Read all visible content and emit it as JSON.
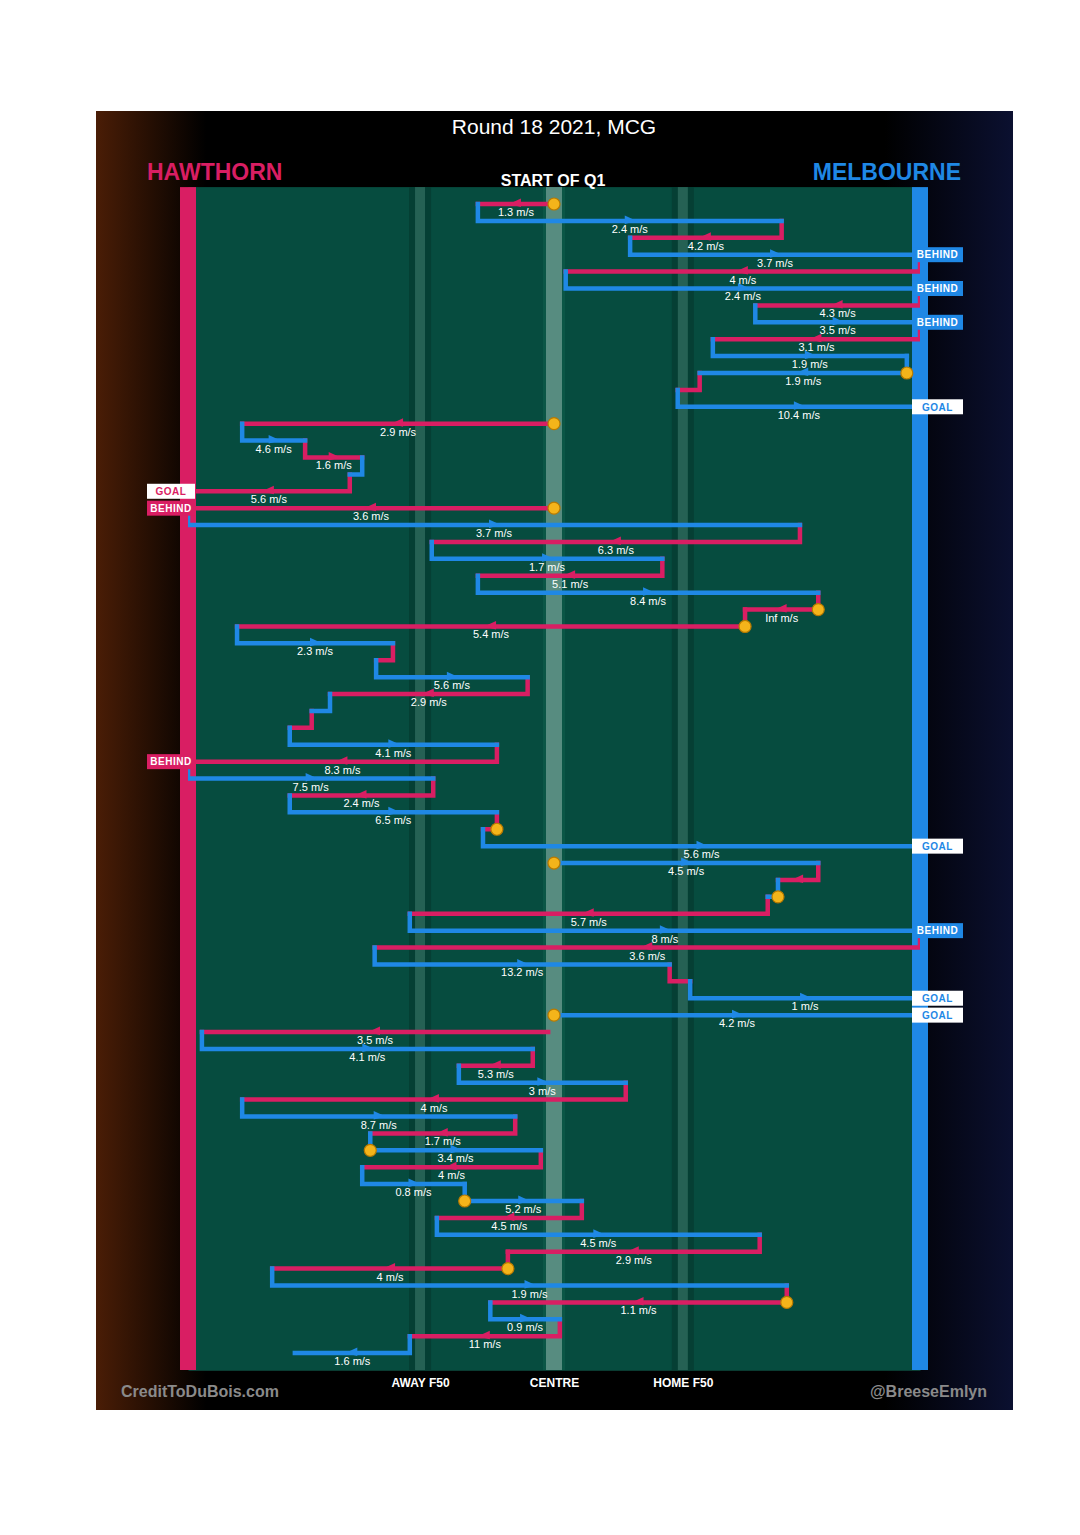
{
  "chart_data": {
    "type": "possession_chain",
    "title": "Round 18 2021, MCG",
    "subtitle": "START OF Q1",
    "source": "CreditToDuBois.com",
    "author": "@BreeseEmlyn",
    "xlim": [
      0,
      100
    ],
    "xticks": [
      {
        "value": 31.7,
        "label": "AWAY F50"
      },
      {
        "value": 50,
        "label": "CENTRE"
      },
      {
        "value": 67.6,
        "label": "HOME F50"
      }
    ],
    "ylim": [
      -1,
      69
    ],
    "grid": true,
    "tick_labels": "x",
    "series": [
      {
        "name": "HAWTHORN",
        "color": "#d91e63",
        "segments": [
          {
            "row": 0,
            "start": 50,
            "end": 39.6,
            "label": "1.3 m/s",
            "stoppage": true
          },
          {
            "row": 2,
            "start": 81.1,
            "end": 60.4,
            "label": "4.2 m/s"
          },
          {
            "row": 4,
            "start": 100,
            "end": 51.6,
            "label": "4 m/s"
          },
          {
            "row": 6,
            "start": 100,
            "end": 77.5,
            "label": "4.3 m/s"
          },
          {
            "row": 8,
            "start": 100,
            "end": 71.7,
            "label": "3.1 m/s"
          },
          {
            "row": 11,
            "start": 69.9,
            "end": 66.9
          },
          {
            "row": 13,
            "start": 50,
            "end": 7.4,
            "label": "2.9 m/s",
            "stoppage": true
          },
          {
            "row": 15,
            "start": 16.0,
            "end": 23.8,
            "label": "1.6 m/s"
          },
          {
            "row": 17,
            "start": 22.1,
            "end": 0,
            "label": "5.6 m/s",
            "outcome": "GOAL",
            "goal": true
          },
          {
            "row": 18,
            "start": 50,
            "end": 0,
            "label": "3.6 m/s",
            "stoppage": true,
            "outcome": "BEHIND",
            "goal": false
          },
          {
            "row": 20,
            "start": 83.6,
            "end": 33.3,
            "label": "6.3 m/s"
          },
          {
            "row": 22,
            "start": 64.8,
            "end": 39.6,
            "label": "5.1 m/s"
          },
          {
            "row": 24,
            "start": 86.1,
            "end": 76.1,
            "label": "Inf m/s",
            "stoppage": true
          },
          {
            "row": 25,
            "start": 76.1,
            "end": 6.7,
            "label": "5.4 m/s",
            "stoppage": true
          },
          {
            "row": 27,
            "start": 28.0,
            "end": 25.7
          },
          {
            "row": 29,
            "start": 46.4,
            "end": 19.4,
            "label": "2.9 m/s"
          },
          {
            "row": 31,
            "start": 16.9,
            "end": 13.9
          },
          {
            "row": 33,
            "start": 42.2,
            "end": 0,
            "label": "8.3 m/s",
            "outcome": "BEHIND",
            "goal": false
          },
          {
            "row": 35,
            "start": 33.5,
            "end": 13.9,
            "label": "2.4 m/s"
          },
          {
            "row": 37,
            "start": 42.2,
            "end": 40.3,
            "stoppage": true
          },
          {
            "row": 40,
            "start": 86.1,
            "end": 80.6
          },
          {
            "row": 42,
            "start": 79.2,
            "end": 30.3,
            "label": "5.7 m/s"
          },
          {
            "row": 44,
            "start": 100,
            "end": 25.5,
            "label": "3.6 m/s"
          },
          {
            "row": 46,
            "start": 65.8,
            "end": 68.6
          },
          {
            "row": 49,
            "start": 49.2,
            "end": 1.9,
            "label": "3.5 m/s"
          },
          {
            "row": 51,
            "start": 47.1,
            "end": 37.0,
            "label": "5.3 m/s"
          },
          {
            "row": 53,
            "start": 59.8,
            "end": 7.4,
            "label": "4 m/s"
          },
          {
            "row": 55,
            "start": 44.7,
            "end": 24.9,
            "label": "1.7 m/s"
          },
          {
            "row": 57,
            "start": 48.2,
            "end": 23.8,
            "label": "4 m/s"
          },
          {
            "row": 60,
            "start": 53.8,
            "end": 34.0,
            "label": "4.5 m/s"
          },
          {
            "row": 62,
            "start": 78.1,
            "end": 43.7,
            "label": "2.9 m/s"
          },
          {
            "row": 63,
            "start": 43.7,
            "end": 11.5,
            "label": "4 m/s",
            "stoppage": true
          },
          {
            "row": 65,
            "start": 81.8,
            "end": 41.3,
            "label": "1.1 m/s",
            "stoppage": true
          },
          {
            "row": 67,
            "start": 50.8,
            "end": 30.3,
            "label": "11 m/s"
          }
        ]
      },
      {
        "name": "MELBOURNE",
        "color": "#1f88e5",
        "segments": [
          {
            "row": 1,
            "start": 39.6,
            "end": 81.1,
            "label": "2.4 m/s"
          },
          {
            "row": 3,
            "start": 60.4,
            "end": 100,
            "label": "3.7 m/s",
            "outcome": "BEHIND",
            "goal": false
          },
          {
            "row": 5,
            "start": 51.6,
            "end": 100,
            "label": "2.4 m/s",
            "outcome": "BEHIND",
            "goal": false
          },
          {
            "row": 7,
            "start": 77.5,
            "end": 100,
            "label": "3.5 m/s",
            "outcome": "BEHIND",
            "goal": false
          },
          {
            "row": 9,
            "start": 71.7,
            "end": 98.2,
            "label": "1.9 m/s"
          },
          {
            "row": 10,
            "start": 98.2,
            "end": 69.9,
            "label": "1.9 m/s",
            "stoppage": true
          },
          {
            "row": 12,
            "start": 66.9,
            "end": 100,
            "label": "10.4 m/s",
            "outcome": "GOAL",
            "goal": true
          },
          {
            "row": 14,
            "start": 7.4,
            "end": 16.0,
            "label": "4.6 m/s"
          },
          {
            "row": 16,
            "start": 23.8,
            "end": 22.1
          },
          {
            "row": 19,
            "start": 0,
            "end": 83.6,
            "label": "3.7 m/s"
          },
          {
            "row": 21,
            "start": 33.3,
            "end": 64.8,
            "label": "1.7 m/s"
          },
          {
            "row": 23,
            "start": 39.6,
            "end": 86.1,
            "label": "8.4 m/s"
          },
          {
            "row": 26,
            "start": 6.7,
            "end": 28.0,
            "label": "2.3 m/s"
          },
          {
            "row": 28,
            "start": 25.7,
            "end": 46.4,
            "label": "5.6 m/s"
          },
          {
            "row": 30,
            "start": 19.4,
            "end": 16.9
          },
          {
            "row": 32,
            "start": 13.9,
            "end": 42.2,
            "label": "4.1 m/s"
          },
          {
            "row": 34,
            "start": 0,
            "end": 33.5,
            "label": "7.5 m/s"
          },
          {
            "row": 36,
            "start": 13.9,
            "end": 42.2,
            "label": "6.5 m/s"
          },
          {
            "row": 38,
            "start": 40.3,
            "end": 100,
            "label": "5.6 m/s",
            "outcome": "GOAL",
            "goal": true
          },
          {
            "row": 39,
            "start": 50,
            "end": 86.1,
            "label": "4.5 m/s",
            "stoppage": true
          },
          {
            "row": 41,
            "start": 80.6,
            "end": 79.2,
            "stoppage": true
          },
          {
            "row": 43,
            "start": 30.3,
            "end": 100,
            "label": "8 m/s",
            "outcome": "BEHIND",
            "goal": false
          },
          {
            "row": 45,
            "start": 25.5,
            "end": 65.8,
            "label": "13.2 m/s"
          },
          {
            "row": 47,
            "start": 68.6,
            "end": 100,
            "label": "1 m/s",
            "outcome": "GOAL",
            "goal": true
          },
          {
            "row": 48,
            "start": 50,
            "end": 100,
            "label": "4.2 m/s",
            "stoppage": true,
            "outcome": "GOAL",
            "goal": true
          },
          {
            "row": 50,
            "start": 1.9,
            "end": 47.1,
            "label": "4.1 m/s"
          },
          {
            "row": 52,
            "start": 37.0,
            "end": 59.8,
            "label": "3 m/s"
          },
          {
            "row": 54,
            "start": 7.4,
            "end": 44.7,
            "label": "8.7 m/s"
          },
          {
            "row": 56,
            "start": 24.9,
            "end": 48.2,
            "label": "3.4 m/s",
            "stoppage": true
          },
          {
            "row": 58,
            "start": 23.8,
            "end": 37.8,
            "label": "0.8 m/s"
          },
          {
            "row": 59,
            "start": 37.8,
            "end": 53.8,
            "label": "5.2 m/s",
            "stoppage": true
          },
          {
            "row": 61,
            "start": 34.0,
            "end": 78.1,
            "label": "4.5 m/s"
          },
          {
            "row": 64,
            "start": 11.5,
            "end": 81.8,
            "label": "1.9 m/s"
          },
          {
            "row": 66,
            "start": 41.3,
            "end": 50.8,
            "label": "0.9 m/s"
          },
          {
            "row": 68,
            "start": 30.3,
            "end": 14.6,
            "label": "1.6 m/s"
          }
        ]
      }
    ]
  }
}
